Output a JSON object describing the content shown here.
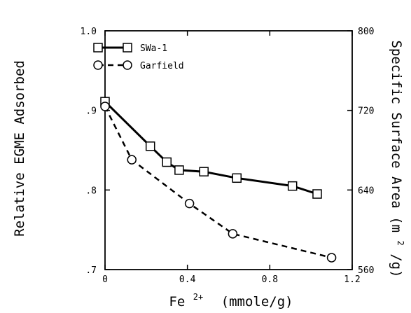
{
  "chart_data": {
    "type": "line",
    "title": "",
    "xlabel": {
      "main": "Fe",
      "sup": "2+",
      "unit": "(mmole/g)"
    },
    "ylabel": "Relative EGME Adsorbed",
    "y2label": {
      "main": "Specific Surface Area",
      "unit_pre": "(m",
      "unit_sup": "2",
      "unit_post": "/g)"
    },
    "xlim": [
      0,
      1.2
    ],
    "ylim": [
      0.7,
      1.0
    ],
    "y2lim": [
      560,
      800
    ],
    "x_ticks": [
      {
        "value": 0,
        "label": "0"
      },
      {
        "value": 0.4,
        "label": "0.4"
      },
      {
        "value": 0.8,
        "label": "0.8"
      },
      {
        "value": 1.2,
        "label": "1.2"
      }
    ],
    "y_ticks": [
      {
        "value": 0.7,
        "label": ".7"
      },
      {
        "value": 0.8,
        "label": ".8"
      },
      {
        "value": 0.9,
        "label": ".9"
      },
      {
        "value": 1.0,
        "label": "1.0"
      }
    ],
    "y2_ticks": [
      {
        "value": 560,
        "label": "560"
      },
      {
        "value": 640,
        "label": "640"
      },
      {
        "value": 720,
        "label": "720"
      },
      {
        "value": 800,
        "label": "800"
      }
    ],
    "grid": false,
    "legend": "top-left",
    "series": [
      {
        "name": "SWa-1",
        "marker": "square",
        "line_style": "solid",
        "color": "#000000",
        "x": [
          0,
          0.22,
          0.3,
          0.36,
          0.48,
          0.64,
          0.91,
          1.03
        ],
        "y": [
          0.911,
          0.855,
          0.835,
          0.825,
          0.823,
          0.815,
          0.805,
          0.795
        ]
      },
      {
        "name": "Garfield",
        "marker": "circle",
        "line_style": "dashed",
        "color": "#000000",
        "x": [
          0,
          0.13,
          0.41,
          0.62,
          1.1
        ],
        "y": [
          0.905,
          0.838,
          0.783,
          0.745,
          0.715
        ]
      }
    ]
  }
}
